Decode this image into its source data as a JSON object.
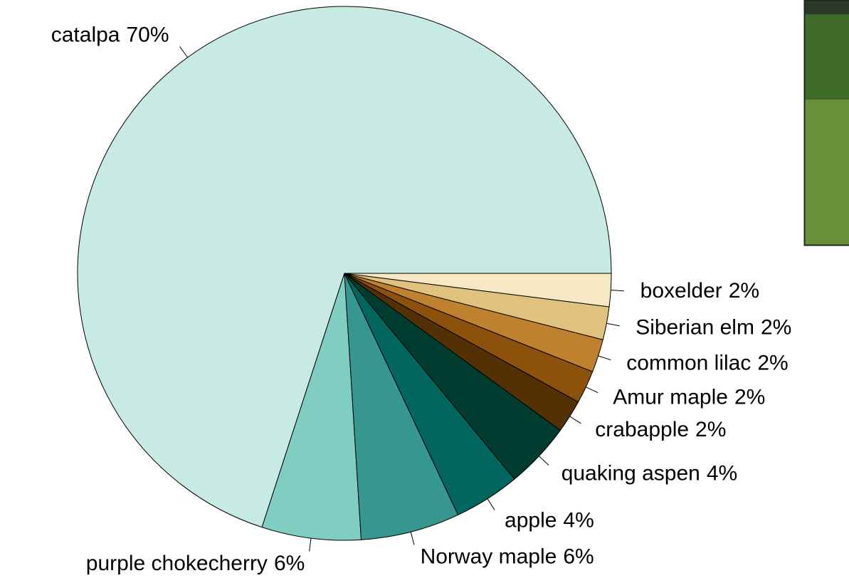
{
  "chart_data": {
    "type": "pie",
    "categories": [
      "catalpa",
      "purple chokecherry",
      "Norway maple",
      "apple",
      "quaking aspen",
      "crabapple",
      "Amur maple",
      "common lilac",
      "Siberian elm",
      "boxelder"
    ],
    "values": [
      70,
      6,
      6,
      4,
      4,
      2,
      2,
      2,
      2,
      2
    ],
    "value_labels": [
      "70%",
      "6%",
      "6%",
      "4%",
      "4%",
      "2%",
      "2%",
      "2%",
      "2%",
      "2%"
    ],
    "colors": [
      "#C7EAE5",
      "#80CDC1",
      "#35978F",
      "#01665E",
      "#003C30",
      "#543005",
      "#8C510A",
      "#BF812D",
      "#DFC27D",
      "#F6E8C3"
    ]
  }
}
